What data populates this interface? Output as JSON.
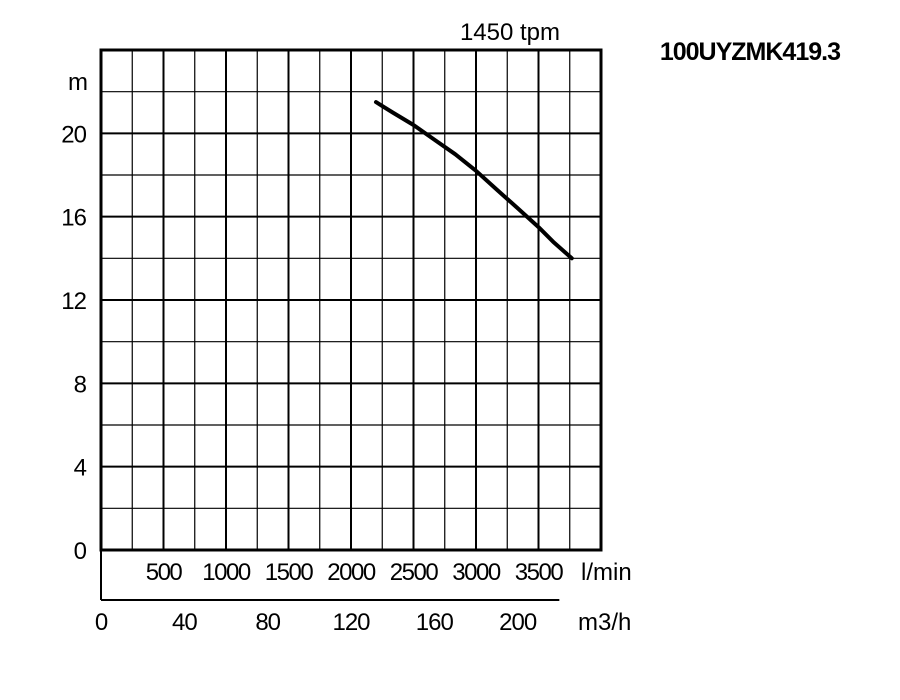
{
  "chart_data": {
    "type": "line",
    "title": "100UYZMK419.3",
    "subtitle": "1450 tpm",
    "ylabel": "m",
    "xlabel": "m3/h",
    "x2label": "l/min",
    "xlim": [
      0,
      240
    ],
    "ylim": [
      0,
      24
    ],
    "yticks": [
      "0",
      "4",
      "8",
      "12",
      "16",
      "20"
    ],
    "xticks": [
      "0",
      "40",
      "80",
      "120",
      "160",
      "200"
    ],
    "x2ticks": [
      "500",
      "1000",
      "1500",
      "2000",
      "2500",
      "3000",
      "3500"
    ],
    "grid": true,
    "series": [
      {
        "x": [
          132,
          140,
          150,
          160,
          170,
          180,
          190,
          200,
          210,
          217,
          226
        ],
        "y": [
          21.5,
          21.0,
          20.4,
          19.7,
          19.0,
          18.2,
          17.3,
          16.4,
          15.5,
          14.8,
          14.0
        ],
        "color": "#000000"
      }
    ]
  }
}
